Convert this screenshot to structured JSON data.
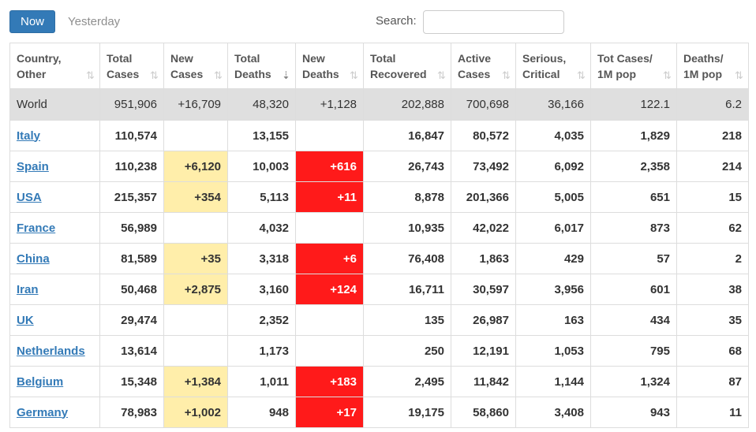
{
  "toolbar": {
    "now_label": "Now",
    "yesterday_label": "Yesterday",
    "search_label": "Search:",
    "search_value": "",
    "search_placeholder": ""
  },
  "colors": {
    "primary_button": "#337ab7",
    "new_cases_highlight": "#ffeeaa",
    "new_deaths_highlight": "#ff1a1a",
    "world_row": "#dfdfdf",
    "link": "#337ab7"
  },
  "table": {
    "columns": [
      {
        "line1": "Country,",
        "line2": "Other",
        "sort_icon": "sort-both-icon"
      },
      {
        "line1": "Total",
        "line2": "Cases",
        "sort_icon": "sort-both-icon"
      },
      {
        "line1": "New",
        "line2": "Cases",
        "sort_icon": "sort-both-icon"
      },
      {
        "line1": "Total",
        "line2": "Deaths",
        "sort_icon": "sort-desc-icon"
      },
      {
        "line1": "New",
        "line2": "Deaths",
        "sort_icon": "sort-both-icon"
      },
      {
        "line1": "Total",
        "line2": "Recovered",
        "sort_icon": "sort-both-icon"
      },
      {
        "line1": "Active",
        "line2": "Cases",
        "sort_icon": "sort-both-icon"
      },
      {
        "line1": "Serious,",
        "line2": "Critical",
        "sort_icon": "sort-both-icon"
      },
      {
        "line1": "Tot Cases/",
        "line2": "1M pop",
        "sort_icon": "sort-both-icon"
      },
      {
        "line1": "Deaths/",
        "line2": "1M pop",
        "sort_icon": "sort-both-icon"
      }
    ],
    "world": {
      "country": "World",
      "total_cases": "951,906",
      "new_cases": "+16,709",
      "total_deaths": "48,320",
      "new_deaths": "+1,128",
      "total_recovered": "202,888",
      "active_cases": "700,698",
      "serious_critical": "36,166",
      "tot_cases_1m": "122.1",
      "deaths_1m": "6.2"
    },
    "rows": [
      {
        "country": "Italy",
        "total_cases": "110,574",
        "new_cases": "",
        "total_deaths": "13,155",
        "new_deaths": "",
        "total_recovered": "16,847",
        "active_cases": "80,572",
        "serious_critical": "4,035",
        "tot_cases_1m": "1,829",
        "deaths_1m": "218"
      },
      {
        "country": "Spain",
        "total_cases": "110,238",
        "new_cases": "+6,120",
        "total_deaths": "10,003",
        "new_deaths": "+616",
        "total_recovered": "26,743",
        "active_cases": "73,492",
        "serious_critical": "6,092",
        "tot_cases_1m": "2,358",
        "deaths_1m": "214"
      },
      {
        "country": "USA",
        "total_cases": "215,357",
        "new_cases": "+354",
        "total_deaths": "5,113",
        "new_deaths": "+11",
        "total_recovered": "8,878",
        "active_cases": "201,366",
        "serious_critical": "5,005",
        "tot_cases_1m": "651",
        "deaths_1m": "15"
      },
      {
        "country": "France",
        "total_cases": "56,989",
        "new_cases": "",
        "total_deaths": "4,032",
        "new_deaths": "",
        "total_recovered": "10,935",
        "active_cases": "42,022",
        "serious_critical": "6,017",
        "tot_cases_1m": "873",
        "deaths_1m": "62"
      },
      {
        "country": "China",
        "total_cases": "81,589",
        "new_cases": "+35",
        "total_deaths": "3,318",
        "new_deaths": "+6",
        "total_recovered": "76,408",
        "active_cases": "1,863",
        "serious_critical": "429",
        "tot_cases_1m": "57",
        "deaths_1m": "2"
      },
      {
        "country": "Iran",
        "total_cases": "50,468",
        "new_cases": "+2,875",
        "total_deaths": "3,160",
        "new_deaths": "+124",
        "total_recovered": "16,711",
        "active_cases": "30,597",
        "serious_critical": "3,956",
        "tot_cases_1m": "601",
        "deaths_1m": "38"
      },
      {
        "country": "UK",
        "total_cases": "29,474",
        "new_cases": "",
        "total_deaths": "2,352",
        "new_deaths": "",
        "total_recovered": "135",
        "active_cases": "26,987",
        "serious_critical": "163",
        "tot_cases_1m": "434",
        "deaths_1m": "35"
      },
      {
        "country": "Netherlands",
        "total_cases": "13,614",
        "new_cases": "",
        "total_deaths": "1,173",
        "new_deaths": "",
        "total_recovered": "250",
        "active_cases": "12,191",
        "serious_critical": "1,053",
        "tot_cases_1m": "795",
        "deaths_1m": "68"
      },
      {
        "country": "Belgium",
        "total_cases": "15,348",
        "new_cases": "+1,384",
        "total_deaths": "1,011",
        "new_deaths": "+183",
        "total_recovered": "2,495",
        "active_cases": "11,842",
        "serious_critical": "1,144",
        "tot_cases_1m": "1,324",
        "deaths_1m": "87"
      },
      {
        "country": "Germany",
        "total_cases": "78,983",
        "new_cases": "+1,002",
        "total_deaths": "948",
        "new_deaths": "+17",
        "total_recovered": "19,175",
        "active_cases": "58,860",
        "serious_critical": "3,408",
        "tot_cases_1m": "943",
        "deaths_1m": "11"
      }
    ]
  }
}
